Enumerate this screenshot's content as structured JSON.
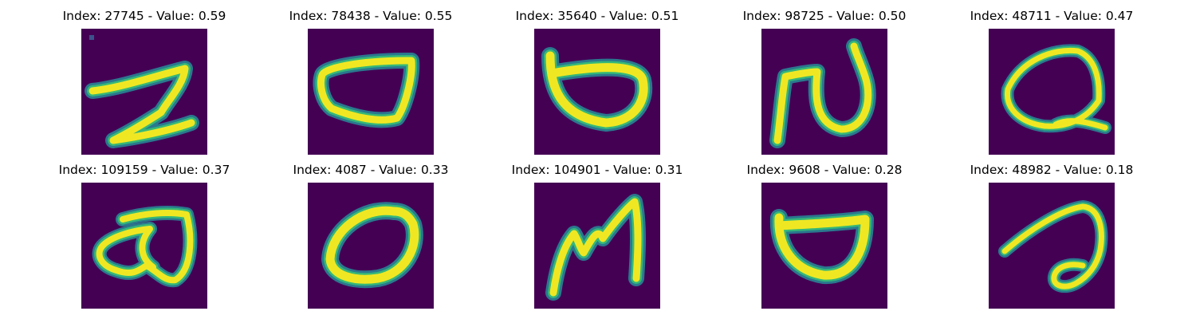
{
  "panels": [
    {
      "title": "Index: 27745 - Value: 0.59",
      "glyph": "z-scribble"
    },
    {
      "title": "Index: 78438 - Value: 0.55",
      "glyph": "oval"
    },
    {
      "title": "Index: 35640 - Value: 0.51",
      "glyph": "cup"
    },
    {
      "title": "Index: 98725 - Value: 0.50",
      "glyph": "n-scribble"
    },
    {
      "title": "Index: 48711 - Value: 0.47",
      "glyph": "q-loop"
    },
    {
      "title": "Index: 109159 - Value: 0.37",
      "glyph": "cloud-loop"
    },
    {
      "title": "Index: 4087 - Value: 0.33",
      "glyph": "zero"
    },
    {
      "title": "Index: 104901 - Value: 0.31",
      "glyph": "m-scribble"
    },
    {
      "title": "Index: 9608 - Value: 0.28",
      "glyph": "bowl"
    },
    {
      "title": "Index: 48982 - Value: 0.18",
      "glyph": "a-loop"
    }
  ],
  "colors": {
    "background": "#440154",
    "stroke_core": "#f0e723",
    "stroke_edge": "#35b779",
    "stroke_halo": "#2a788e"
  }
}
